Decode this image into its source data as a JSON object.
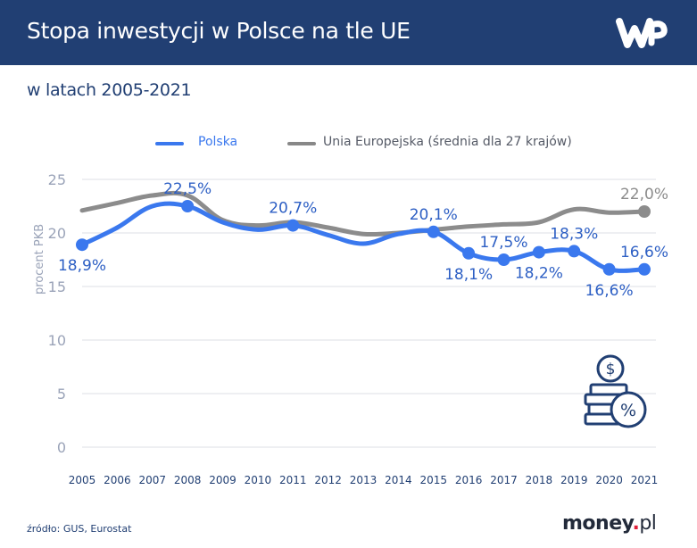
{
  "header": {
    "title": "Stopa inwestycji w Polsce na tle UE",
    "logo_icon": "wp-logo-icon"
  },
  "subtitle": "w latach 2005-2021",
  "legend": [
    {
      "name": "Polska",
      "color": "#3a78ee"
    },
    {
      "name": "Unia Europejska (średnia dla 27 krajów)",
      "color": "#888888"
    }
  ],
  "footer": {
    "source": "źródło: GUS, Eurostat",
    "brand_main": "money",
    "brand_dot": ".",
    "brand_tld": "pl"
  },
  "decor_icon": "coins-percent-icon",
  "chart_data": {
    "type": "line",
    "title": "Stopa inwestycji w Polsce na tle UE",
    "subtitle": "w latach 2005-2021",
    "xlabel": "",
    "ylabel": "procent PKB",
    "ylim": [
      0,
      25
    ],
    "yticks": [
      0,
      5,
      10,
      15,
      20,
      25
    ],
    "ytick_labels": [
      "0",
      "5",
      "10",
      "15",
      "20",
      "25"
    ],
    "grid": true,
    "legend_position": "top",
    "x": [
      "2005",
      "2006",
      "2007",
      "2008",
      "2009",
      "2010",
      "2011",
      "2012",
      "2013",
      "2014",
      "2015",
      "2016",
      "2017",
      "2018",
      "2019",
      "2020",
      "2021"
    ],
    "series": [
      {
        "name": "Polska",
        "color": "#3a78ee",
        "values": [
          18.9,
          20.5,
          22.5,
          22.5,
          21.0,
          20.3,
          20.7,
          19.8,
          19.0,
          19.9,
          20.1,
          18.1,
          17.5,
          18.2,
          18.3,
          16.6,
          16.6
        ],
        "markers": [
          0,
          3,
          6,
          10,
          11,
          12,
          13,
          14,
          15,
          16
        ],
        "labels": [
          {
            "index": 0,
            "text": "18,9%",
            "pos": "below"
          },
          {
            "index": 3,
            "text": "22,5%",
            "pos": "above"
          },
          {
            "index": 6,
            "text": "20,7%",
            "pos": "above"
          },
          {
            "index": 10,
            "text": "20,1%",
            "pos": "above"
          },
          {
            "index": 11,
            "text": "18,1%",
            "pos": "below"
          },
          {
            "index": 12,
            "text": "17,5%",
            "pos": "above"
          },
          {
            "index": 13,
            "text": "18,2%",
            "pos": "below"
          },
          {
            "index": 14,
            "text": "18,3%",
            "pos": "above"
          },
          {
            "index": 15,
            "text": "16,6%",
            "pos": "below"
          },
          {
            "index": 16,
            "text": "16,6%",
            "pos": "above"
          }
        ]
      },
      {
        "name": "Unia Europejska (średnia dla 27 krajów)",
        "color": "#8c8c8c",
        "values": [
          22.1,
          22.8,
          23.5,
          23.5,
          21.2,
          20.7,
          21.0,
          20.5,
          19.9,
          20.0,
          20.3,
          20.6,
          20.8,
          21.0,
          22.2,
          21.9,
          22.0
        ],
        "markers": [
          16
        ],
        "labels": [
          {
            "index": 16,
            "text": "22,0%",
            "pos": "above"
          }
        ]
      }
    ]
  }
}
